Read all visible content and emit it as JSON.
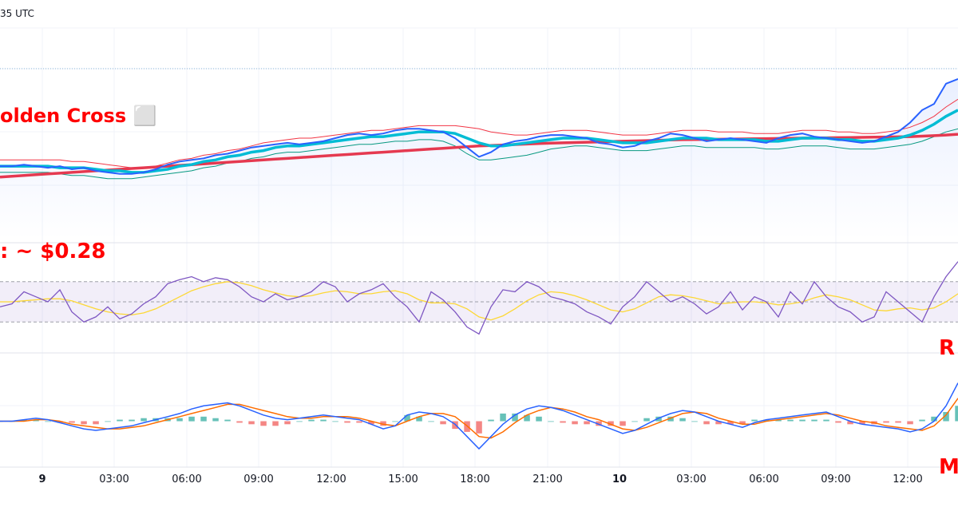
{
  "header": {
    "timestamp": "35 UTC"
  },
  "annotations": {
    "golden_cross": "olden Cross ⬜",
    "target": ": ~ $0.28",
    "rsi_label": "R",
    "macd_label": "M"
  },
  "colors": {
    "price": "#2962ff",
    "ma_fast": "#00bcd4",
    "ma_slow": "#e53950",
    "band_upper": "#f23645",
    "band_lower": "#089981",
    "rsi": "#7e57c2",
    "rsi_ma": "#fdd835",
    "macd": "#2962ff",
    "signal": "#ff6d00",
    "hist_pos": "#26a69a",
    "hist_neg": "#ef5350",
    "annotation": "#ff0000"
  },
  "chart_data": [
    {
      "type": "line",
      "panel": "price",
      "title": "",
      "x_ticks": [
        {
          "label": "9",
          "bold": true
        },
        {
          "label": "03:00"
        },
        {
          "label": "06:00"
        },
        {
          "label": "09:00"
        },
        {
          "label": "12:00"
        },
        {
          "label": "15:00"
        },
        {
          "label": "18:00"
        },
        {
          "label": "21:00"
        },
        {
          "label": "10",
          "bold": true
        },
        {
          "label": "03:00"
        },
        {
          "label": "06:00"
        },
        {
          "label": "09:00"
        },
        {
          "label": "12:00"
        }
      ],
      "x": [
        0,
        1,
        2,
        3,
        4,
        5,
        6,
        7,
        8,
        9,
        10,
        11,
        12,
        13,
        14,
        15,
        16,
        17,
        18,
        19,
        20,
        21,
        22,
        23,
        24,
        25,
        26,
        27,
        28,
        29,
        30,
        31,
        32,
        33,
        34,
        35,
        36,
        37,
        38,
        39,
        40,
        41,
        42,
        43,
        44,
        45,
        46,
        47,
        48,
        49,
        50,
        51,
        52,
        53,
        54,
        55,
        56,
        57,
        58,
        59,
        60,
        61,
        62,
        63,
        64,
        65,
        66,
        67,
        68,
        69,
        70,
        71,
        72,
        73,
        74,
        75,
        76,
        77,
        78,
        79,
        80
      ],
      "ylim": [
        0,
        100
      ],
      "series": [
        {
          "key": "price",
          "values": [
            42,
            42,
            43,
            42,
            41,
            42,
            40,
            41,
            39,
            38,
            37,
            37,
            38,
            40,
            43,
            45,
            46,
            47,
            49,
            50,
            52,
            54,
            55,
            56,
            57,
            56,
            57,
            58,
            60,
            62,
            63,
            62,
            63,
            65,
            66,
            66,
            65,
            64,
            60,
            54,
            48,
            51,
            56,
            58,
            59,
            61,
            62,
            62,
            61,
            60,
            57,
            56,
            54,
            55,
            58,
            60,
            63,
            62,
            60,
            58,
            59,
            60,
            59,
            58,
            57,
            60,
            62,
            63,
            61,
            60,
            59,
            58,
            57,
            58,
            61,
            64,
            70,
            78,
            82,
            95,
            98
          ]
        },
        {
          "key": "ma_fast",
          "values": [
            42,
            42,
            42,
            42,
            42,
            41,
            41,
            41,
            40,
            39,
            39,
            38,
            38,
            39,
            40,
            42,
            43,
            45,
            46,
            48,
            49,
            51,
            52,
            54,
            55,
            55,
            56,
            57,
            58,
            59,
            60,
            61,
            61,
            62,
            63,
            64,
            64,
            64,
            63,
            60,
            57,
            55,
            55,
            56,
            57,
            58,
            59,
            60,
            60,
            60,
            59,
            58,
            57,
            57,
            57,
            58,
            59,
            60,
            60,
            60,
            59,
            59,
            59,
            59,
            58,
            58,
            59,
            60,
            60,
            60,
            59,
            59,
            58,
            58,
            59,
            60,
            62,
            65,
            69,
            74,
            78
          ]
        },
        {
          "key": "ma_slow",
          "values": [
            35,
            35.5,
            36,
            36.5,
            37,
            37.5,
            38,
            38.5,
            39,
            39.5,
            40,
            40.5,
            41,
            41.5,
            42,
            42.5,
            43,
            43.5,
            44,
            44.5,
            45,
            45.5,
            46,
            46.5,
            47,
            47.5,
            48,
            48.5,
            49,
            49.5,
            50,
            50.5,
            51,
            51.5,
            52,
            52.5,
            53,
            53.5,
            54,
            54.5,
            55,
            55.3,
            55.6,
            55.9,
            56.2,
            56.5,
            56.8,
            57,
            57.2,
            57.4,
            57.6,
            57.8,
            58,
            58.2,
            58.4,
            58.6,
            58.8,
            59,
            59.1,
            59.2,
            59.3,
            59.4,
            59.5,
            59.6,
            59.7,
            59.8,
            59.9,
            60,
            60.1,
            60.2,
            60.3,
            60.4,
            60.5,
            60.6,
            60.7,
            60.8,
            61,
            61.3,
            61.6,
            62,
            62.5
          ]
        },
        {
          "key": "band_upper",
          "values": [
            46,
            46,
            46,
            46,
            46,
            46,
            45,
            45,
            44,
            43,
            42,
            41,
            41,
            42,
            44,
            46,
            47,
            49,
            50,
            52,
            53,
            55,
            57,
            58,
            59,
            60,
            60,
            61,
            62,
            63,
            64,
            65,
            65,
            66,
            67,
            68,
            68,
            68,
            68,
            67,
            66,
            64,
            63,
            62,
            62,
            63,
            64,
            65,
            65,
            65,
            64,
            63,
            62,
            62,
            62,
            63,
            64,
            65,
            65,
            65,
            64,
            64,
            64,
            63,
            63,
            63,
            64,
            65,
            65,
            65,
            64,
            64,
            63,
            63,
            64,
            65,
            67,
            70,
            74,
            80,
            85
          ]
        },
        {
          "key": "band_lower",
          "values": [
            38,
            38,
            38,
            38,
            38,
            37,
            36,
            36,
            35,
            34,
            34,
            34,
            35,
            36,
            37,
            38,
            39,
            41,
            42,
            44,
            45,
            47,
            48,
            50,
            51,
            51,
            52,
            53,
            54,
            55,
            56,
            56,
            57,
            58,
            58,
            59,
            59,
            58,
            55,
            50,
            46,
            46,
            47,
            48,
            49,
            51,
            53,
            54,
            55,
            55,
            54,
            53,
            52,
            52,
            52,
            53,
            54,
            55,
            55,
            54,
            54,
            54,
            54,
            54,
            53,
            53,
            54,
            55,
            55,
            55,
            54,
            53,
            53,
            53,
            54,
            55,
            56,
            58,
            61,
            64,
            66
          ]
        }
      ]
    },
    {
      "type": "line",
      "panel": "rsi",
      "title": "",
      "ylim": [
        0,
        100
      ],
      "bands": [
        30,
        50,
        70
      ],
      "x": [
        0,
        1,
        2,
        3,
        4,
        5,
        6,
        7,
        8,
        9,
        10,
        11,
        12,
        13,
        14,
        15,
        16,
        17,
        18,
        19,
        20,
        21,
        22,
        23,
        24,
        25,
        26,
        27,
        28,
        29,
        30,
        31,
        32,
        33,
        34,
        35,
        36,
        37,
        38,
        39,
        40,
        41,
        42,
        43,
        44,
        45,
        46,
        47,
        48,
        49,
        50,
        51,
        52,
        53,
        54,
        55,
        56,
        57,
        58,
        59,
        60,
        61,
        62,
        63,
        64,
        65,
        66,
        67,
        68,
        69,
        70,
        71,
        72,
        73,
        74,
        75,
        76,
        77,
        78,
        79,
        80
      ],
      "series": [
        {
          "key": "rsi",
          "values": [
            45,
            48,
            60,
            55,
            50,
            62,
            40,
            30,
            35,
            45,
            33,
            38,
            48,
            55,
            68,
            72,
            75,
            70,
            74,
            72,
            65,
            55,
            50,
            58,
            52,
            55,
            60,
            70,
            65,
            50,
            58,
            62,
            68,
            55,
            45,
            30,
            60,
            52,
            40,
            25,
            18,
            45,
            62,
            60,
            70,
            65,
            55,
            52,
            48,
            40,
            35,
            28,
            45,
            55,
            70,
            60,
            50,
            55,
            48,
            38,
            45,
            60,
            42,
            55,
            50,
            35,
            60,
            48,
            70,
            55,
            45,
            40,
            30,
            35,
            60,
            50,
            40,
            30,
            55,
            75,
            90
          ]
        },
        {
          "key": "rsi_ma",
          "values": [
            50,
            50,
            51,
            52,
            53,
            53,
            51,
            47,
            43,
            40,
            38,
            37,
            39,
            43,
            49,
            55,
            61,
            65,
            68,
            70,
            69,
            66,
            62,
            59,
            56,
            55,
            56,
            59,
            61,
            60,
            58,
            58,
            60,
            61,
            58,
            52,
            49,
            49,
            48,
            43,
            35,
            32,
            36,
            43,
            51,
            57,
            60,
            59,
            56,
            52,
            47,
            42,
            40,
            43,
            49,
            55,
            57,
            56,
            54,
            51,
            48,
            49,
            50,
            50,
            49,
            47,
            48,
            50,
            54,
            57,
            55,
            52,
            47,
            42,
            41,
            43,
            44,
            42,
            44,
            50,
            58
          ]
        }
      ]
    },
    {
      "type": "line",
      "panel": "macd",
      "title": "",
      "ylim": [
        -30,
        30
      ],
      "x": [
        0,
        1,
        2,
        3,
        4,
        5,
        6,
        7,
        8,
        9,
        10,
        11,
        12,
        13,
        14,
        15,
        16,
        17,
        18,
        19,
        20,
        21,
        22,
        23,
        24,
        25,
        26,
        27,
        28,
        29,
        30,
        31,
        32,
        33,
        34,
        35,
        36,
        37,
        38,
        39,
        40,
        41,
        42,
        43,
        44,
        45,
        46,
        47,
        48,
        49,
        50,
        51,
        52,
        53,
        54,
        55,
        56,
        57,
        58,
        59,
        60,
        61,
        62,
        63,
        64,
        65,
        66,
        67,
        68,
        69,
        70,
        71,
        72,
        73,
        74,
        75,
        76,
        77,
        78,
        79,
        80
      ],
      "series": [
        {
          "key": "macd",
          "values": [
            0,
            0,
            1,
            2,
            1,
            -1,
            -3,
            -5,
            -6,
            -5,
            -4,
            -3,
            -1,
            1,
            3,
            5,
            8,
            10,
            11,
            12,
            10,
            7,
            4,
            2,
            1,
            2,
            3,
            4,
            3,
            2,
            1,
            -2,
            -5,
            -3,
            4,
            6,
            5,
            3,
            -2,
            -10,
            -18,
            -10,
            -2,
            4,
            8,
            10,
            9,
            7,
            4,
            1,
            -2,
            -5,
            -8,
            -6,
            -2,
            2,
            5,
            7,
            6,
            3,
            0,
            -2,
            -4,
            -1,
            1,
            2,
            3,
            4,
            5,
            6,
            3,
            0,
            -2,
            -3,
            -4,
            -5,
            -7,
            -5,
            0,
            10,
            25
          ]
        },
        {
          "key": "signal",
          "values": [
            0,
            0,
            0,
            1,
            1,
            0,
            -2,
            -3,
            -4,
            -5,
            -5,
            -4,
            -3,
            -1,
            1,
            3,
            5,
            7,
            9,
            11,
            11,
            9,
            7,
            5,
            3,
            2,
            2,
            3,
            3,
            3,
            2,
            0,
            -2,
            -3,
            0,
            3,
            5,
            5,
            3,
            -3,
            -10,
            -11,
            -7,
            -1,
            4,
            7,
            9,
            8,
            6,
            3,
            1,
            -2,
            -5,
            -6,
            -4,
            -1,
            2,
            5,
            6,
            5,
            2,
            0,
            -2,
            -2,
            0,
            1,
            2,
            3,
            4,
            5,
            4,
            2,
            0,
            -1,
            -3,
            -4,
            -5,
            -6,
            -3,
            4,
            15
          ]
        }
      ]
    }
  ]
}
